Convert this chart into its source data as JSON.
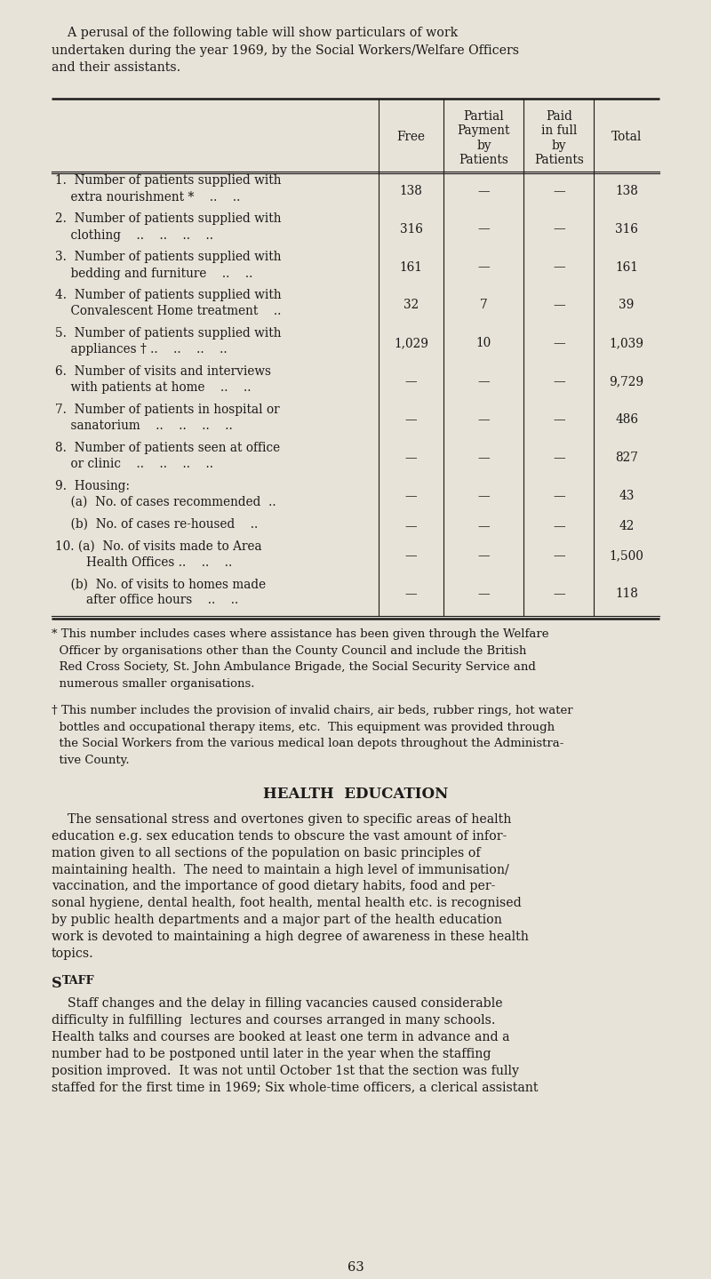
{
  "bg_color": "#e8e3d8",
  "text_color": "#1a1a1a",
  "fig_width": 8.0,
  "fig_height": 14.39,
  "dpi": 100,
  "ml": 0.58,
  "mr": 0.58,
  "intro_lines": [
    "    A perusal of the following table will show particulars of work",
    "undertaken during the year 1969, by the Social Workers/Welfare Officers",
    "and their assistants."
  ],
  "col_headers_1": "Free",
  "col_headers_2": [
    "Partial",
    "Payment",
    "by",
    "Patients"
  ],
  "col_headers_3": [
    "Paid",
    "in full",
    "by",
    "Patients"
  ],
  "col_headers_4": "Total",
  "col_props": [
    0.538,
    0.107,
    0.132,
    0.115,
    0.108
  ],
  "rows": [
    {
      "label1": "1.  Number of patients supplied with",
      "label2": "    extra nourishment *    ..    ..",
      "free": "138",
      "partial": "—",
      "paid": "—",
      "total": "138"
    },
    {
      "label1": "2.  Number of patients supplied with",
      "label2": "    clothing    ..    ..    ..    ..",
      "free": "316",
      "partial": "—",
      "paid": "—",
      "total": "316"
    },
    {
      "label1": "3.  Number of patients supplied with",
      "label2": "    bedding and furniture    ..    ..",
      "free": "161",
      "partial": "—",
      "paid": "—",
      "total": "161"
    },
    {
      "label1": "4.  Number of patients supplied with",
      "label2": "    Convalescent Home treatment    ..",
      "free": "32",
      "partial": "7",
      "paid": "—",
      "total": "39"
    },
    {
      "label1": "5.  Number of patients supplied with",
      "label2": "    appliances † ..    ..    ..    ..",
      "free": "1,029",
      "partial": "10",
      "paid": "—",
      "total": "1,039"
    },
    {
      "label1": "6.  Number of visits and interviews",
      "label2": "    with patients at home    ..    ..",
      "free": "—",
      "partial": "—",
      "paid": "—",
      "total": "9,729"
    },
    {
      "label1": "7.  Number of patients in hospital or",
      "label2": "    sanatorium    ..    ..    ..    ..",
      "free": "—",
      "partial": "—",
      "paid": "—",
      "total": "486"
    },
    {
      "label1": "8.  Number of patients seen at office",
      "label2": "    or clinic    ..    ..    ..    ..",
      "free": "—",
      "partial": "—",
      "paid": "—",
      "total": "827"
    },
    {
      "label1": "9.  Housing:",
      "label2": "    (a)  No. of cases recommended  ..",
      "free": "—",
      "partial": "—",
      "paid": "—",
      "total": "43"
    },
    {
      "label1": "    (b)  No. of cases re-housed    ..",
      "label2": null,
      "free": "—",
      "partial": "—",
      "paid": "—",
      "total": "42"
    },
    {
      "label1": "10. (a)  No. of visits made to Area",
      "label2": "        Health Offices ..    ..    ..",
      "free": "—",
      "partial": "—",
      "paid": "—",
      "total": "1,500"
    },
    {
      "label1": "    (b)  No. of visits to homes made",
      "label2": "        after office hours    ..    ..",
      "free": "—",
      "partial": "—",
      "paid": "—",
      "total": "118"
    }
  ],
  "fn1_lines": [
    "* This number includes cases where assistance has been given through the Welfare",
    "  Officer by organisations other than the County Council and include the British",
    "  Red Cross Society, St. John Ambulance Brigade, the Social Security Service and",
    "  numerous smaller organisations."
  ],
  "fn2_lines": [
    "† This number includes the provision of invalid chairs, air beds, rubber rings, hot water",
    "  bottles and occupational therapy items, etc.  This equipment was provided through",
    "  the Social Workers from the various medical loan depots throughout the Administra-",
    "  tive County."
  ],
  "section_title": "HEALTH  EDUCATION",
  "p1_lines": [
    "    The sensational stress and overtones given to specific areas of health",
    "education e.g. sex education tends to obscure the vast amount of infor-",
    "mation given to all sections of the population on basic principles of",
    "maintaining health.  The need to maintain a high level of immunisation/",
    "vaccination, and the importance of good dietary habits, food and per-",
    "sonal hygiene, dental health, foot health, mental health etc. is recognised",
    "by public health departments and a major part of the health education",
    "work is devoted to maintaining a high degree of awareness in these health",
    "topics."
  ],
  "staff_label": "Staff",
  "p2_lines": [
    "    Staff changes and the delay in filling vacancies caused considerable",
    "difficulty in fulfilling  lectures and courses arranged in many schools.",
    "Health talks and courses are booked at least one term in advance and a",
    "number had to be postponed until later in the year when the staffing",
    "position improved.  It was not until October 1st that the section was fully",
    "staffed for the first time in 1969; Six whole-time officers, a clerical assistant"
  ],
  "page_num": "63"
}
